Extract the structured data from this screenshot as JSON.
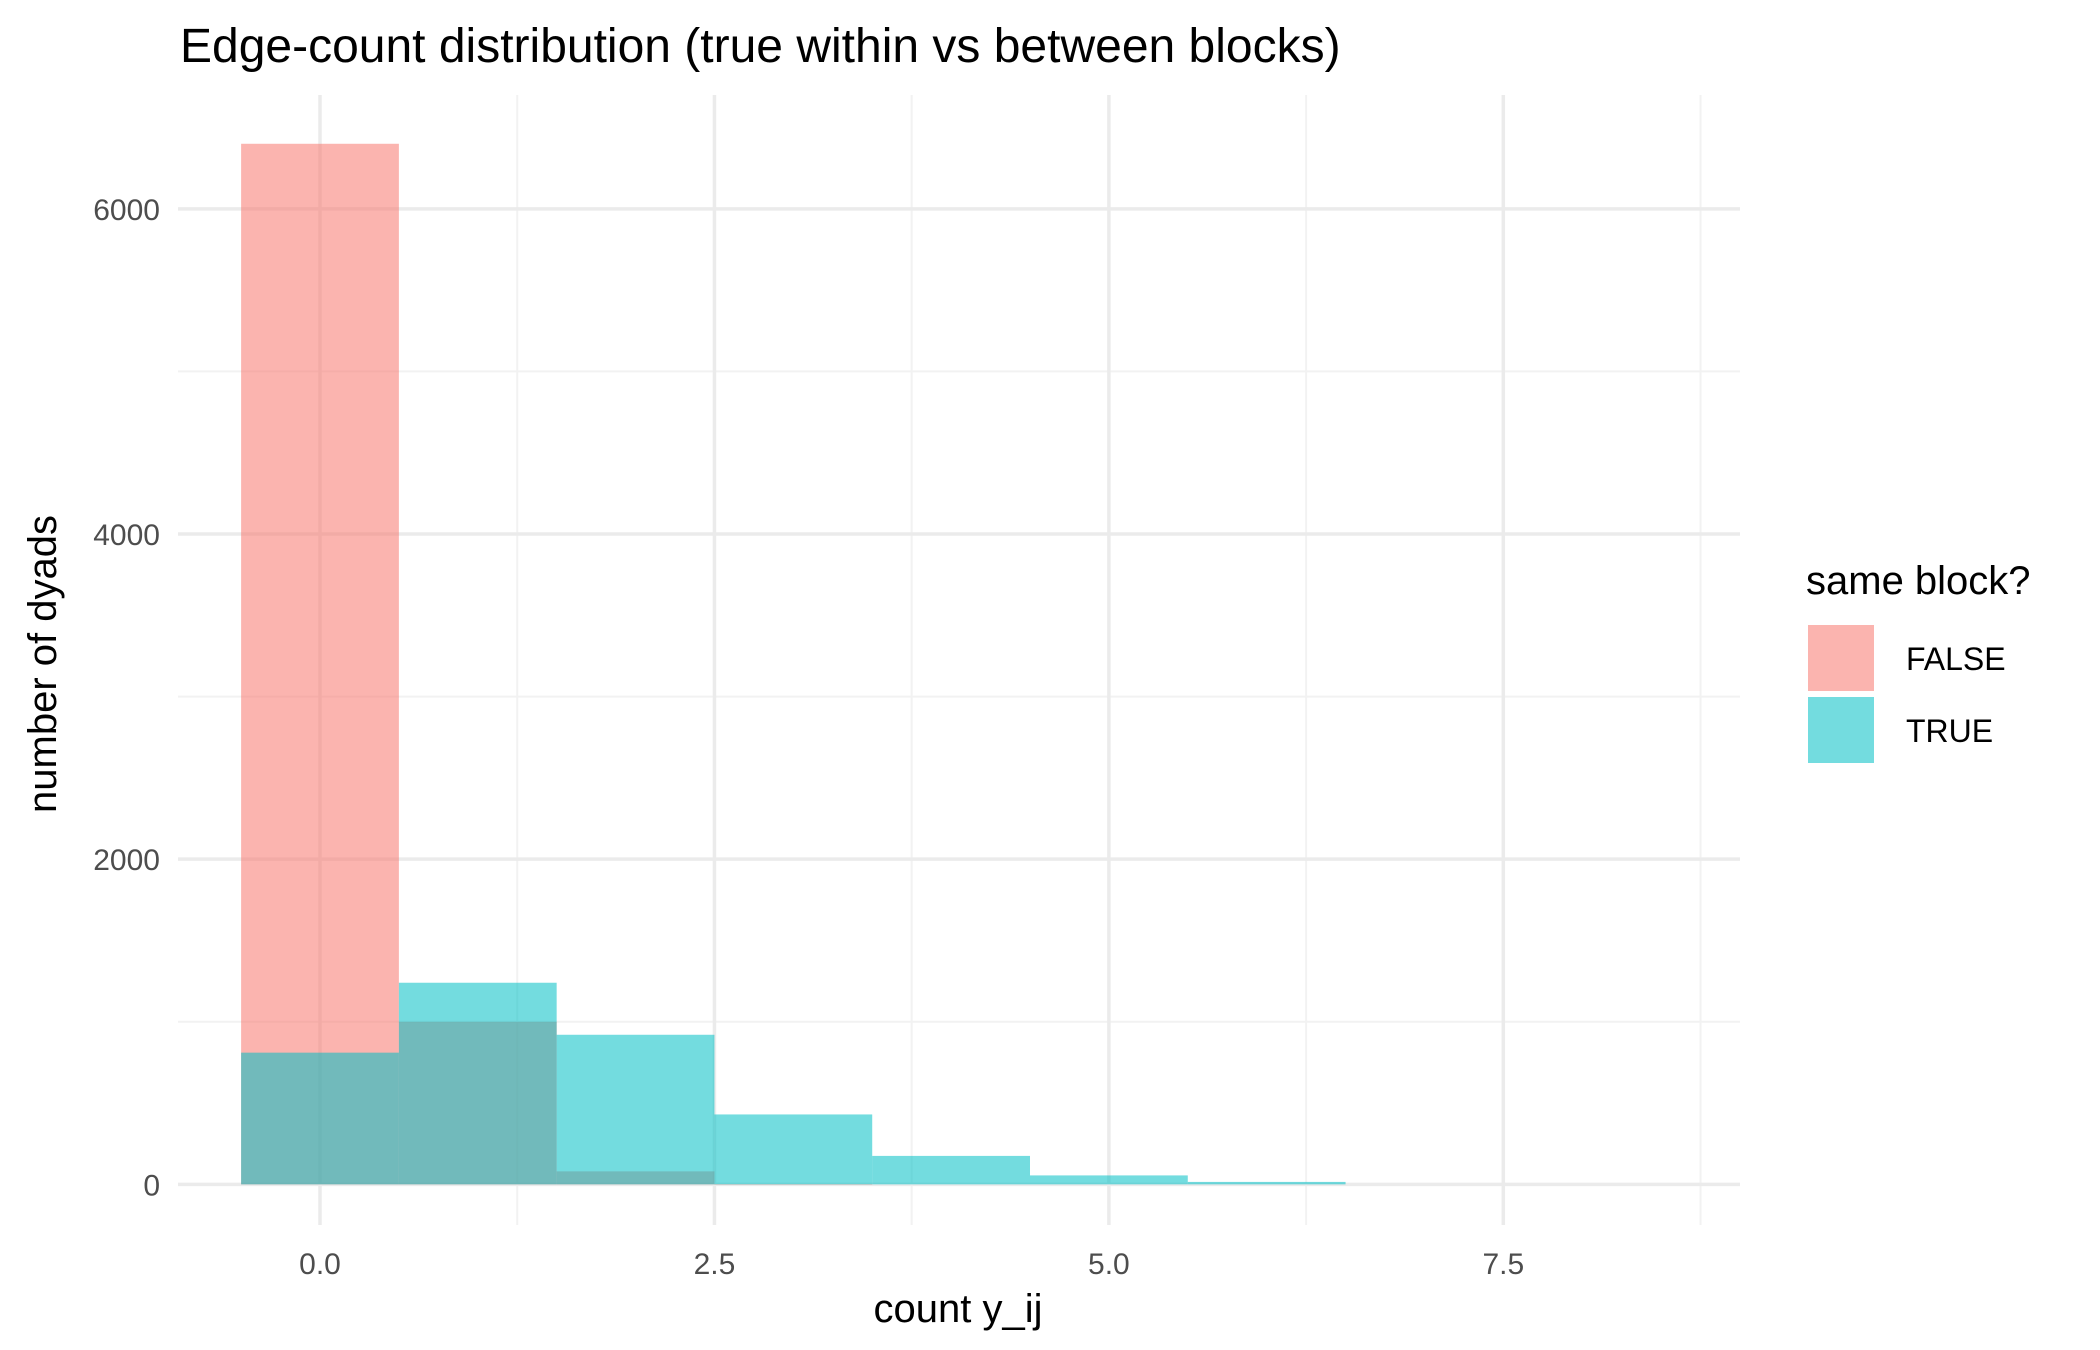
{
  "chart_data": {
    "type": "bar",
    "subtype": "overlaid-histogram",
    "title": "Edge-count distribution (true within vs between blocks)",
    "xlabel": "count y_ij",
    "ylabel": "number of dyads",
    "xlim": [
      -0.9,
      9.0
    ],
    "ylim": [
      -250,
      6700
    ],
    "x_ticks": [
      0.0,
      2.5,
      5.0,
      7.5
    ],
    "x_tick_labels": [
      "0.0",
      "2.5",
      "5.0",
      "7.5"
    ],
    "x_minor_ticks": [
      1.25,
      3.75,
      6.25,
      8.75
    ],
    "y_ticks": [
      0,
      2000,
      4000,
      6000
    ],
    "y_tick_labels": [
      "0",
      "2000",
      "4000",
      "6000"
    ],
    "y_minor_ticks": [
      1000,
      3000,
      5000
    ],
    "grid": true,
    "bin_width": 1,
    "legend": {
      "title": "same block?",
      "position": "right",
      "entries": [
        {
          "label": "FALSE",
          "color": "#F8766D"
        },
        {
          "label": "TRUE",
          "color": "#00BFC4"
        }
      ]
    },
    "series": [
      {
        "name": "FALSE",
        "color": "#F8766D",
        "bins": [
          0,
          1,
          2,
          3,
          4,
          5,
          6
        ],
        "values": [
          6400,
          1000,
          80,
          2,
          0,
          0,
          0
        ]
      },
      {
        "name": "TRUE",
        "color": "#00BFC4",
        "bins": [
          0,
          1,
          2,
          3,
          4,
          5,
          6
        ],
        "values": [
          810,
          1240,
          920,
          430,
          175,
          55,
          15
        ]
      }
    ]
  }
}
